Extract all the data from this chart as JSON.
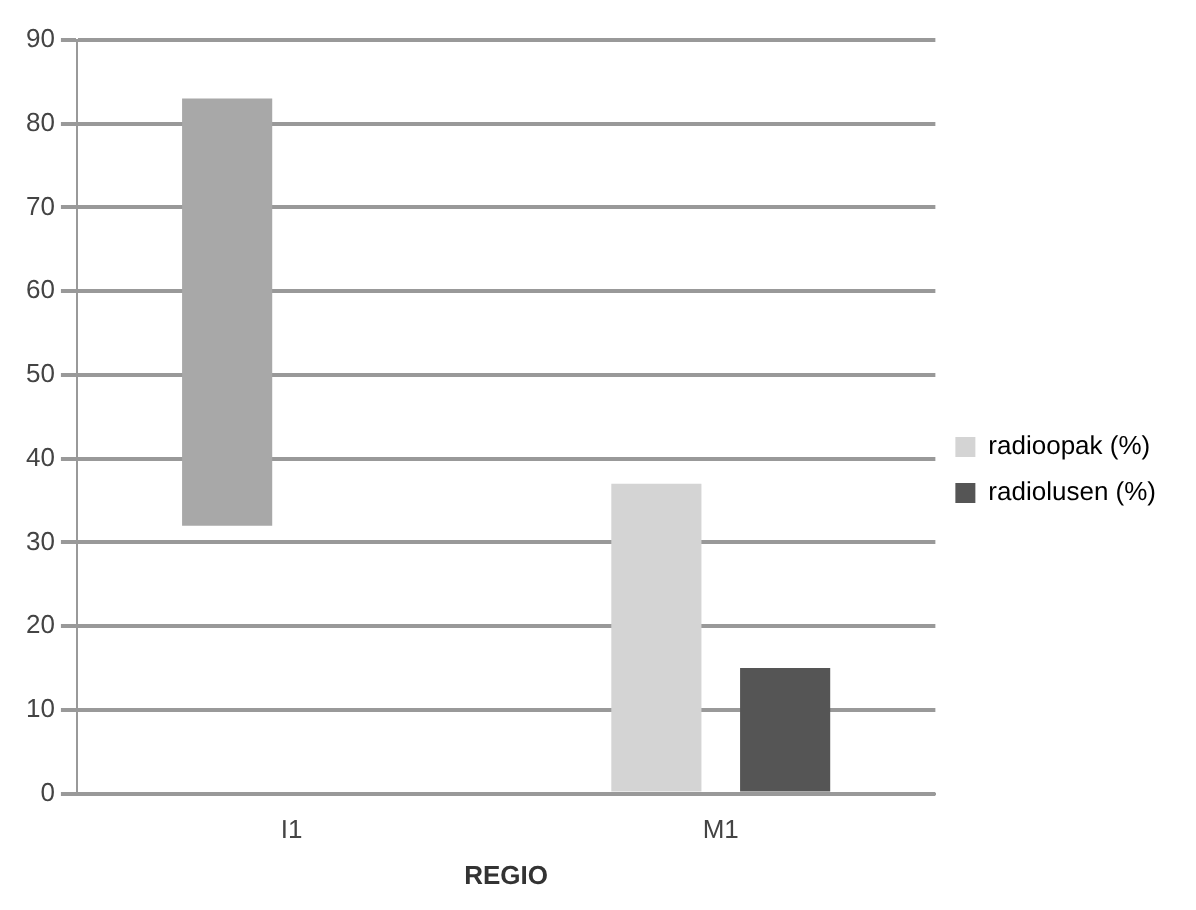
{
  "chart_data": {
    "type": "bar",
    "xlabel": "REGIO",
    "categories": [
      "I1",
      "M1"
    ],
    "series": [
      {
        "name": "radioopak (%)",
        "color": "#d4d4d4",
        "colors": [
          "#a8a8a8",
          "#d4d4d4"
        ],
        "values": [
          51,
          37
        ],
        "base": [
          32,
          0
        ]
      },
      {
        "name": "radiolusen (%)",
        "color": "#555555",
        "values": [
          null,
          15
        ]
      }
    ],
    "ylim": [
      0,
      90
    ],
    "yticks": [
      0,
      10,
      20,
      30,
      40,
      50,
      60,
      70,
      80,
      90
    ],
    "grid": "y",
    "legend": "right"
  }
}
